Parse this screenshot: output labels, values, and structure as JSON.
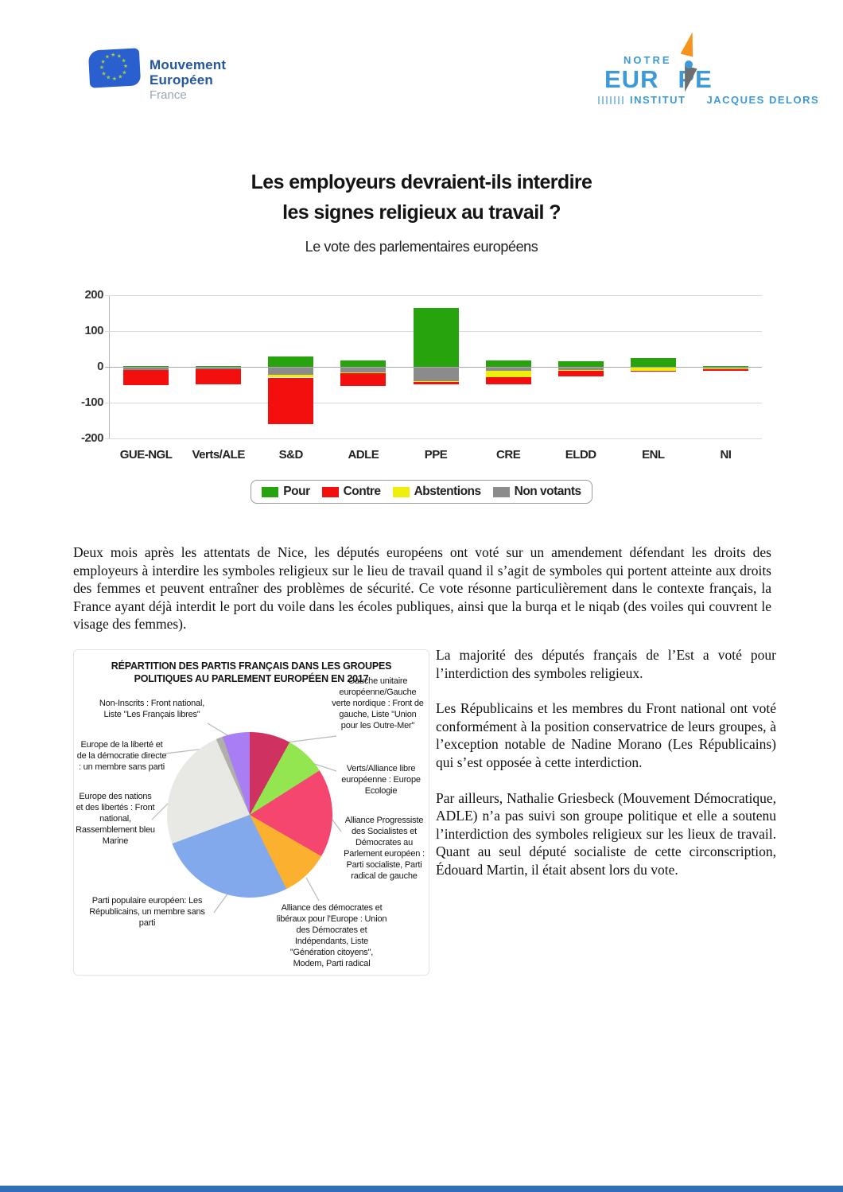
{
  "header": {
    "mouvement_logo": {
      "line1": "Mouvement",
      "line2": "Européen",
      "line3": "France"
    },
    "notre_europe_logo": {
      "top": "NOTRE",
      "main_left": "EUR",
      "main_right": "PE",
      "sub_left": "INSTITUT",
      "sub_right": "JACQUES DELORS"
    }
  },
  "title": {
    "line1": "Les employeurs devraient-ils interdire",
    "line2": "les signes religieux au travail ?",
    "subtitle": "Le vote des parlementaires européens"
  },
  "icons": {
    "star": "★"
  },
  "colors": {
    "pour_green": "#27a30e",
    "contre_red": "#f40f0f",
    "abstention_yellow": "#f0ee0c",
    "nonvotant_gray": "#8b8b8b",
    "footer_blue": "#2e6fb7",
    "logo_blue": "#3d9ad8",
    "eu_flag_blue": "#2a5fd0"
  },
  "chart_data": [
    {
      "type": "bar",
      "stacked": true,
      "title": "Le vote des parlementaires européens",
      "categories": [
        "GUE-NGL",
        "Verts/ALE",
        "S&D",
        "ADLE",
        "PPE",
        "CRE",
        "ELDD",
        "ENL",
        "NI"
      ],
      "series": [
        {
          "name": "Pour",
          "color": "#27a30e",
          "values": [
            1,
            1,
            28,
            17,
            165,
            18,
            15,
            25,
            3
          ]
        },
        {
          "name": "Contre",
          "color": "#f40f0f",
          "values": [
            -43,
            -44,
            -130,
            -35,
            -7,
            -20,
            -17,
            -1,
            -3
          ]
        },
        {
          "name": "Abstentions",
          "color": "#f0ee0c",
          "values": [
            0,
            0,
            -8,
            -3,
            -3,
            -18,
            -2,
            -8,
            -1
          ]
        },
        {
          "name": "Non votants",
          "color": "#8b8b8b",
          "values": [
            -9,
            -6,
            -22,
            -15,
            -40,
            -10,
            -8,
            -2,
            -5
          ]
        }
      ],
      "ylim": [
        -200,
        200
      ],
      "yticks": [
        200,
        100,
        0,
        -100,
        -200
      ],
      "grid": true,
      "legend_position": "bottom"
    },
    {
      "type": "pie",
      "title": "RÉPARTITION DES PARTIS FRANÇAIS DANS LES GROUPES POLITIQUES AU PARLEMENT EUROPÉEN EN 2017",
      "direction": "clockwise",
      "start_angle_deg": 0,
      "slices": [
        {
          "label": "Gauche unitaire européenne/Gauche verte nordique : Front de gauche, Liste \"Union pour les Outre-Mer\"",
          "value": 6,
          "color": "#cf3160"
        },
        {
          "label": "Verts/Alliance libre européenne : Europe Ecologie",
          "value": 6,
          "color": "#93e650"
        },
        {
          "label": "Alliance Progressiste des Socialistes et Démocrates au Parlement européen : Parti socialiste, Parti radical de gauche",
          "value": 13,
          "color": "#f4466f"
        },
        {
          "label": "Alliance des démocrates et libéraux pour l'Europe : Union des Démocrates et Indépendants, Liste \"Génération citoyens\", Modem, Parti radical",
          "value": 7,
          "color": "#fcb02f"
        },
        {
          "label": "Parti populaire européen: Les Républicains, un membre sans parti",
          "value": 20,
          "color": "#82a9ec"
        },
        {
          "label": "Europe des nations et des libertés : Front national, Rassemblement bleu Marine",
          "value": 18,
          "color": "#e8e8e4"
        },
        {
          "label": "Europe de la liberté et de la démocratie directe : un membre sans parti",
          "value": 1,
          "color": "#b0b0a8"
        },
        {
          "label": "Non-Inscrits : Front national, Liste \"Les Français libres\"",
          "value": 4,
          "color": "#a97df3"
        }
      ]
    }
  ],
  "intro": "Deux mois après les attentats de Nice, les députés européens ont voté sur un amendement défendant les droits des employeurs à interdire les symboles religieux sur le lieu de travail quand il s’agit de symboles qui portent atteinte aux droits des femmes et peuvent entraîner des problèmes de sécurité. Ce vote résonne particulièrement dans le contexte français, la France ayant déjà interdit le port du voile dans les écoles publiques, ainsi que la burqa et le niqab (des voiles qui couvrent le visage des femmes).",
  "right_column": {
    "paragraphs": [
      "La majorité des députés français de l’Est a voté pour l’interdiction des symboles religieux.",
      "Les Républicains et les membres du Front national ont voté conformément à la position conservatrice de leurs groupes, à l’exception notable de Nadine Morano (Les Républicains) qui s’est opposée à cette interdiction.",
      "Par ailleurs, Nathalie Griesbeck (Mouvement Démocratique, ADLE) n’a pas suivi son groupe politique et elle a soutenu l’interdiction des symboles religieux sur les lieux de travail. Quant au seul député socialiste de cette circonscription, Édouard Martin, il était absent lors du vote."
    ]
  }
}
